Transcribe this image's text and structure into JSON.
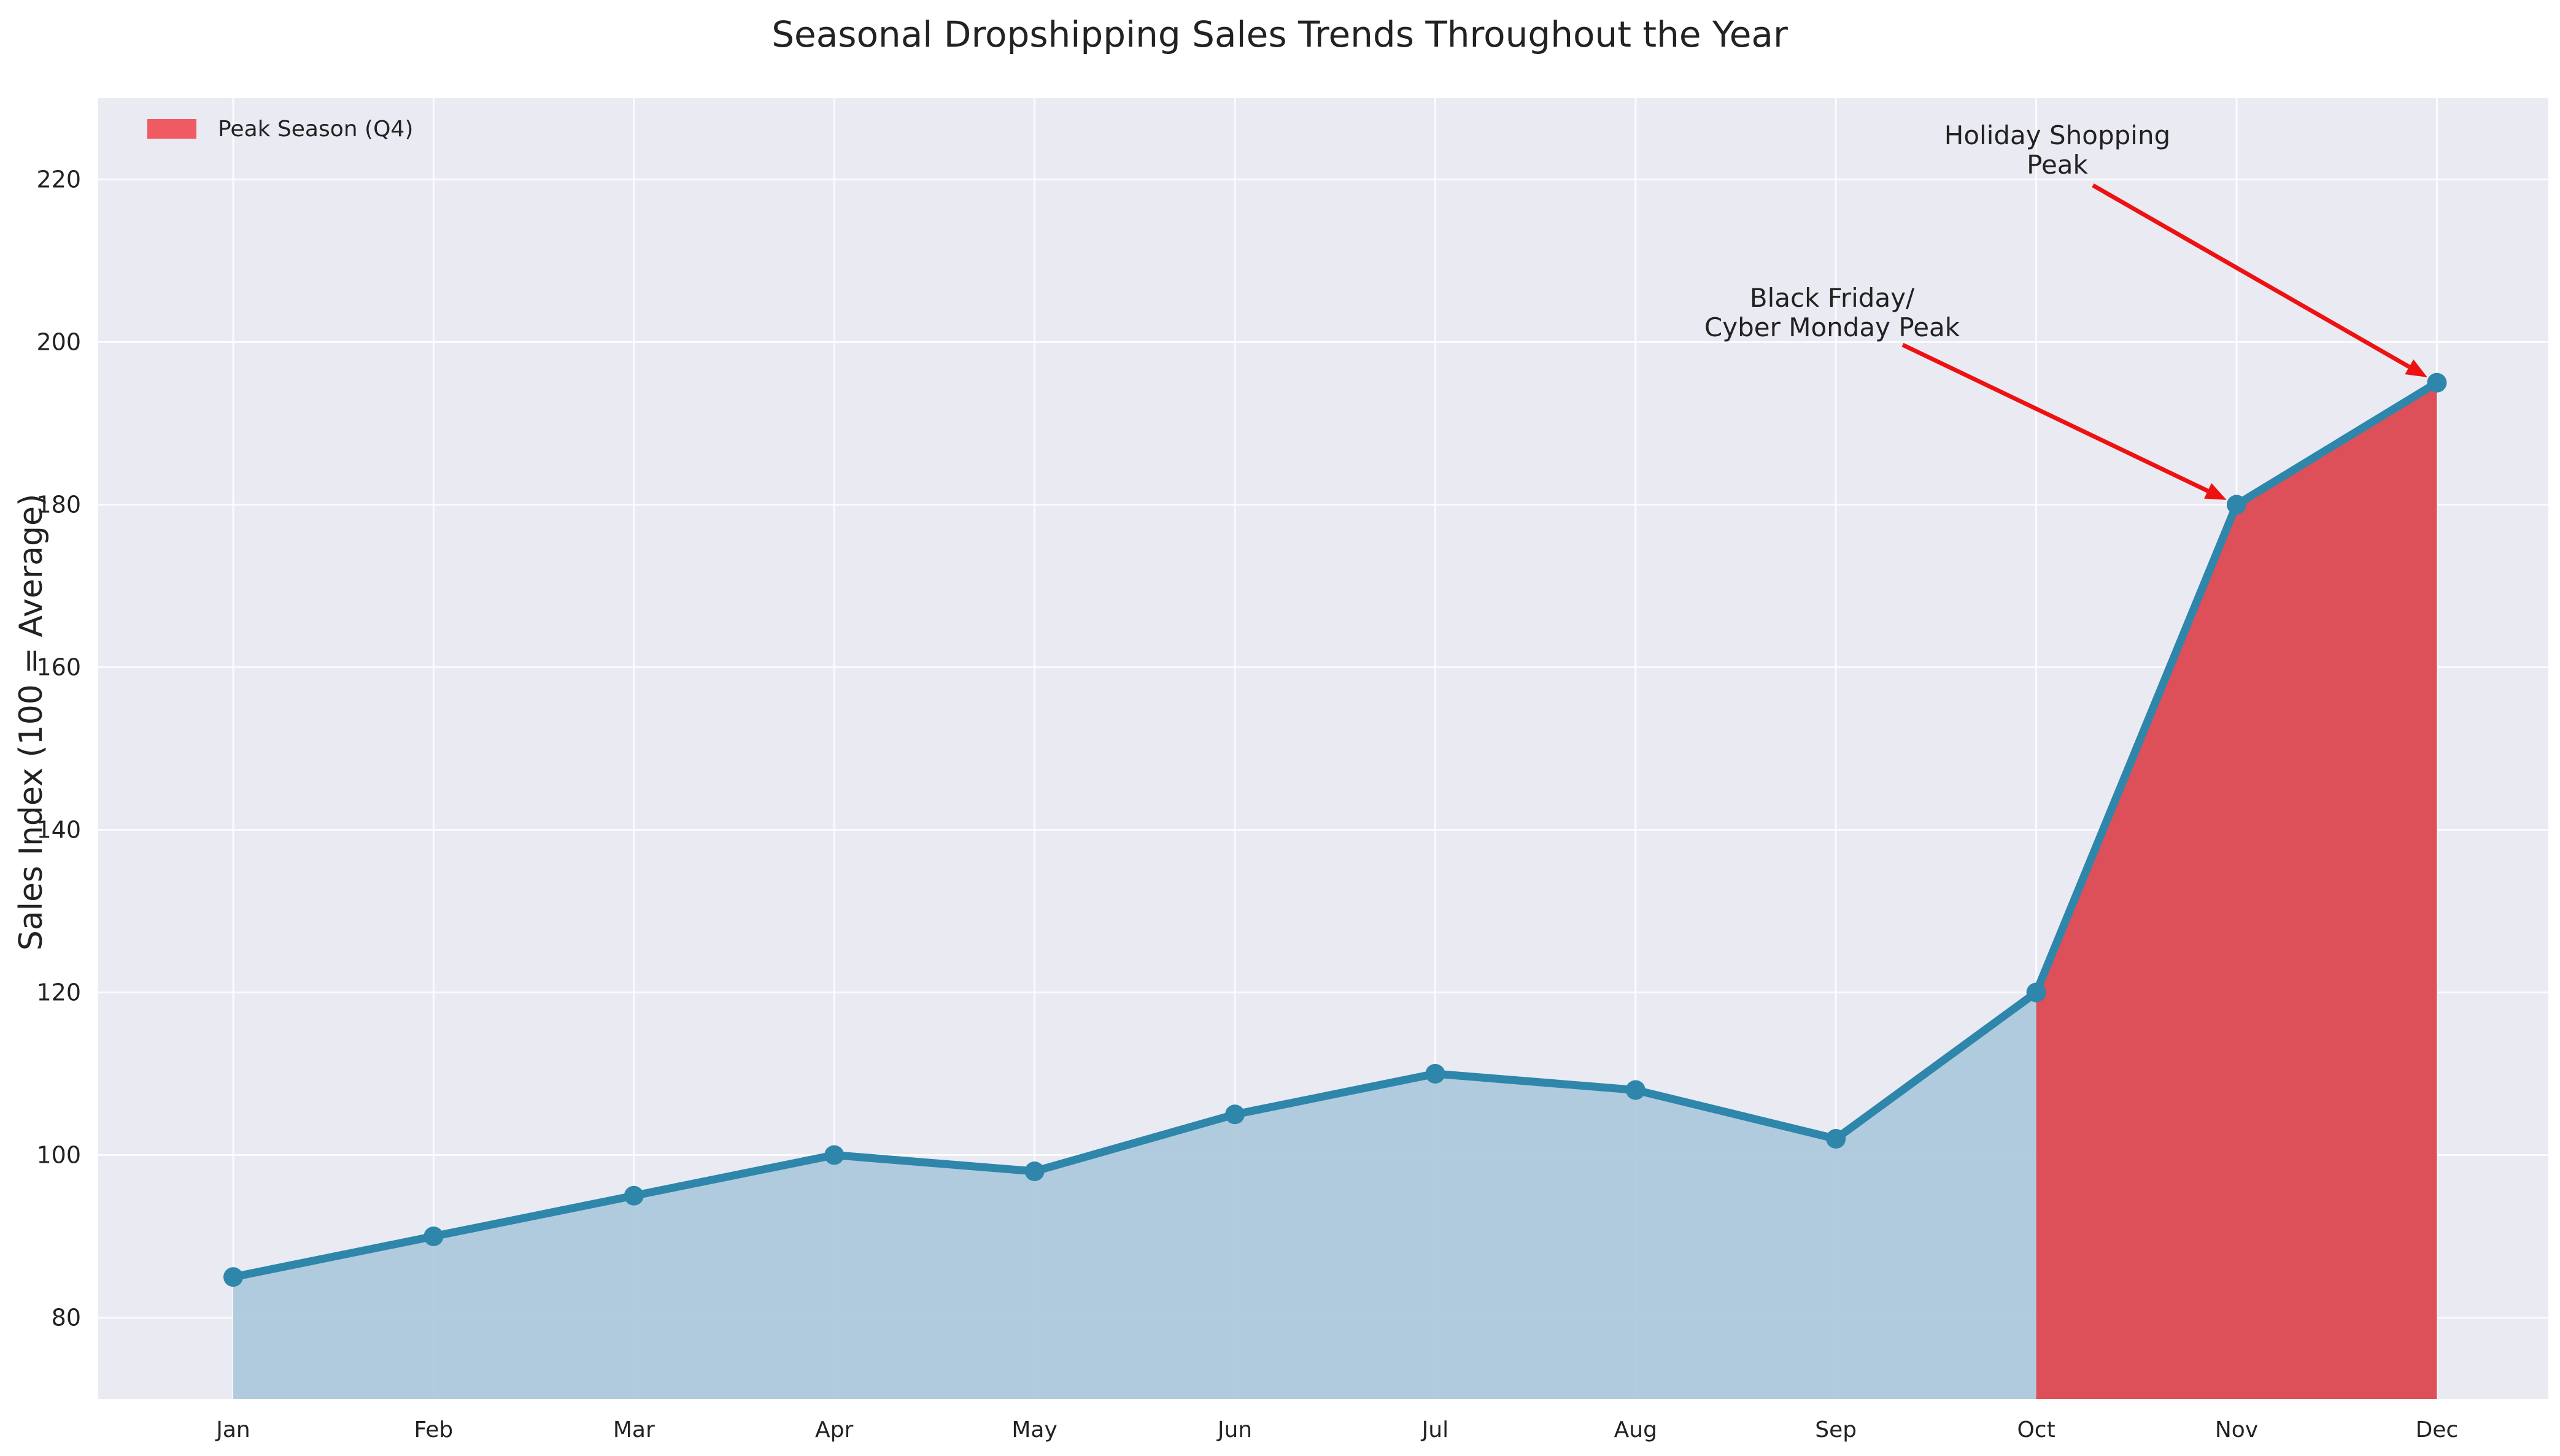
{
  "chart_data": {
    "type": "area",
    "title": "Seasonal Dropshipping Sales Trends Throughout the Year",
    "xlabel": "",
    "ylabel": "Sales Index (100 = Average)",
    "categories": [
      "Jan",
      "Feb",
      "Mar",
      "Apr",
      "May",
      "Jun",
      "Jul",
      "Aug",
      "Sep",
      "Oct",
      "Nov",
      "Dec"
    ],
    "values": [
      85,
      90,
      95,
      100,
      98,
      105,
      110,
      108,
      102,
      120,
      180,
      195
    ],
    "ylim": [
      70,
      230
    ],
    "yticks": [
      80,
      100,
      120,
      140,
      160,
      180,
      200,
      220
    ],
    "grid": true,
    "legend": {
      "placement": "top-left",
      "entries": [
        {
          "label": "Peak Season (Q4)",
          "color": "#f05a63"
        }
      ]
    },
    "highlight": {
      "label": "Peak Season (Q4)",
      "from": "Oct",
      "to": "Dec"
    },
    "annotations": [
      {
        "lines": [
          "Black Friday/",
          "Cyber Monday Peak"
        ],
        "target": "Nov",
        "target_value": 180
      },
      {
        "lines": [
          "Holiday Shopping",
          "Peak"
        ],
        "target": "Dec",
        "target_value": 195
      }
    ],
    "colors": {
      "line": "#2e86ab",
      "area": "#aec9dc",
      "peak": "#dd5059",
      "arrow": "#ee1111",
      "plot_bg": "#eaeaf2"
    }
  }
}
